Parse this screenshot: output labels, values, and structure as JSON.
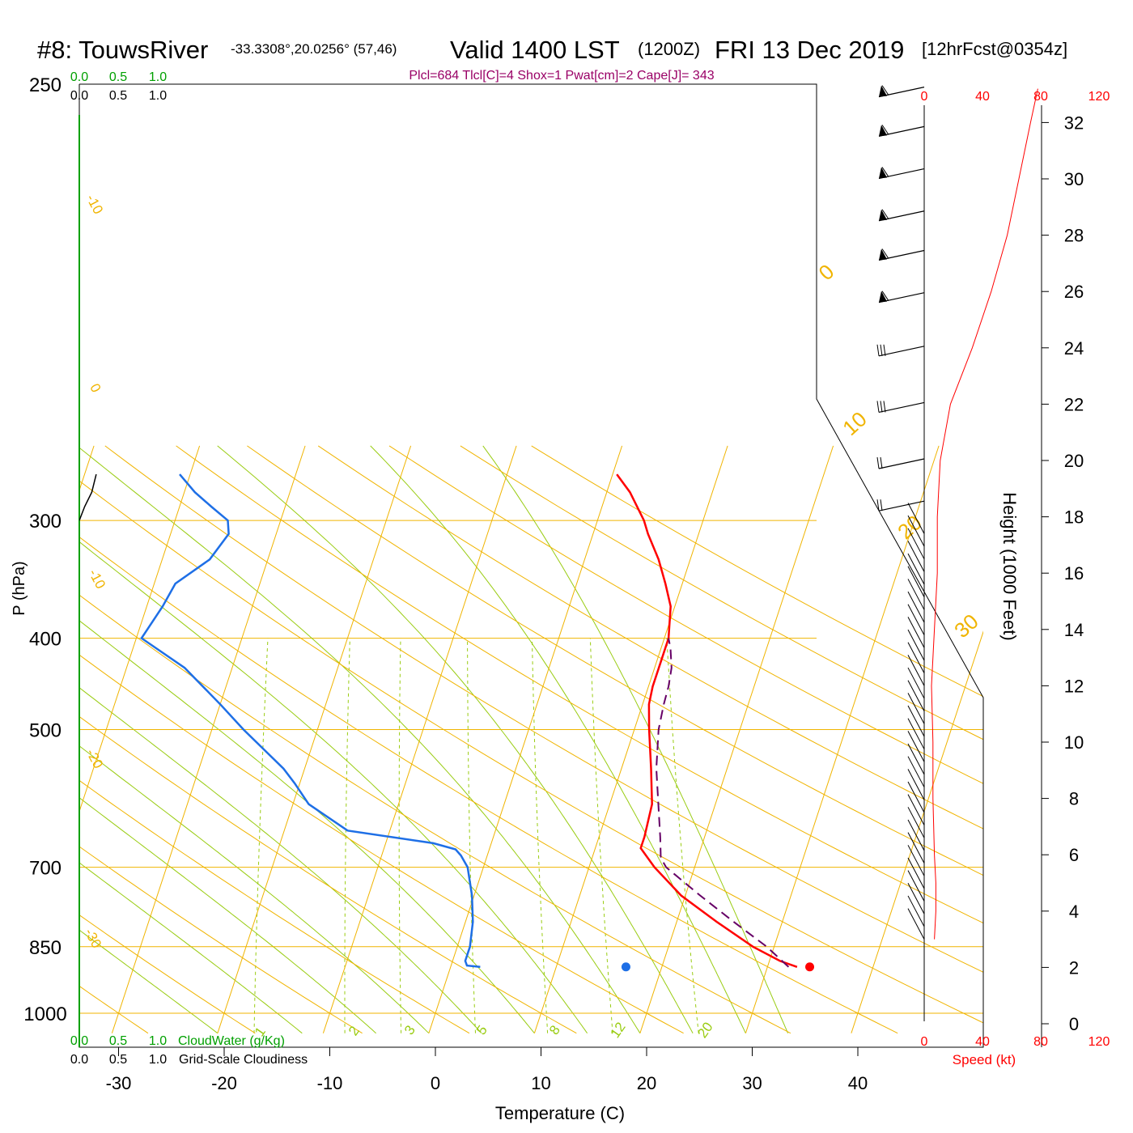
{
  "title": {
    "station": "#8: TouwsRiver",
    "coords": "-33.3308°,20.0256° (57,46)",
    "valid": "Valid 1400 LST",
    "zulu": "(1200Z)",
    "date": "FRI 13 Dec 2019",
    "forecast": "[12hrFcst@0354z]"
  },
  "indices_line": "Plcl=684 Tlcl[C]=4 Shox=1 Pwat[cm]=2 Cape[J]= 343",
  "colors": {
    "temperature": "#ff0000",
    "dewpoint": "#1e6fe6",
    "parcel": "#660066",
    "isotherm": "#f0b400",
    "dry_adiabat": "#f0b400",
    "moist_adiabat": "#99cc11",
    "mixing_ratio": "#99cc11",
    "cloud_water": "#00a000",
    "wind_speed": "#ff0000",
    "indices": "#990066"
  },
  "axes": {
    "xlabel": "Temperature (C)",
    "ylabel": "P (hPa)",
    "right_label": "Height (1000 Feet)",
    "speed_label": "Speed (kt)",
    "temp_ticks": [
      "-30",
      "-20",
      "-10",
      "0",
      "10",
      "20",
      "30",
      "40"
    ],
    "pressure_ticks": [
      "250",
      "300",
      "400",
      "500",
      "700",
      "850",
      "1000"
    ],
    "height_ticks": [
      "0",
      "2",
      "4",
      "6",
      "8",
      "10",
      "12",
      "14",
      "16",
      "18",
      "20",
      "22",
      "24",
      "26",
      "28",
      "30",
      "32"
    ],
    "speed_ticks": [
      "0",
      "40",
      "80",
      "120"
    ],
    "cloud_ticks": [
      "0.0",
      "0.5",
      "1.0"
    ],
    "cloud_water_label": "CloudWater (g/Kg)",
    "cloudiness_label": "Grid-Scale Cloudiness"
  },
  "background_labels": {
    "isotherm_labels": [
      "-10",
      "0",
      "-10",
      "-20",
      "-30"
    ],
    "dry_adiabat_labels": [
      "0",
      "10",
      "20",
      "30"
    ],
    "mixing_ratio_labels": [
      "1",
      "2",
      "3",
      "5",
      "8",
      "12",
      "20"
    ]
  },
  "chart_data": {
    "type": "skew-t",
    "temp_range_C": [
      -34,
      47
    ],
    "pressure_range_hPa": [
      1050,
      250
    ],
    "temperature_profile": [
      {
        "p": 893,
        "t": 32.8
      },
      {
        "p": 880,
        "t": 31.0
      },
      {
        "p": 850,
        "t": 28.0
      },
      {
        "p": 800,
        "t": 23.8
      },
      {
        "p": 750,
        "t": 19.6
      },
      {
        "p": 700,
        "t": 16.2
      },
      {
        "p": 668,
        "t": 14.3
      },
      {
        "p": 650,
        "t": 14.3
      },
      {
        "p": 600,
        "t": 14.0
      },
      {
        "p": 550,
        "t": 12.8
      },
      {
        "p": 500,
        "t": 11.4
      },
      {
        "p": 470,
        "t": 10.6
      },
      {
        "p": 450,
        "t": 10.4
      },
      {
        "p": 430,
        "t": 10.4
      },
      {
        "p": 400,
        "t": 10.4
      },
      {
        "p": 370,
        "t": 9.6
      },
      {
        "p": 350,
        "t": 8.4
      },
      {
        "p": 330,
        "t": 7.0
      },
      {
        "p": 310,
        "t": 5.2
      },
      {
        "p": 300,
        "t": 4.4
      },
      {
        "p": 280,
        "t": 2.2
      },
      {
        "p": 268,
        "t": 0.4
      }
    ],
    "dewpoint_profile": [
      {
        "p": 893,
        "t": 2.8
      },
      {
        "p": 890,
        "t": 1.5
      },
      {
        "p": 880,
        "t": 1.2
      },
      {
        "p": 850,
        "t": 1.2
      },
      {
        "p": 800,
        "t": 0.7
      },
      {
        "p": 750,
        "t": -0.2
      },
      {
        "p": 700,
        "t": -1.5
      },
      {
        "p": 680,
        "t": -2.5
      },
      {
        "p": 670,
        "t": -3.2
      },
      {
        "p": 660,
        "t": -5.5
      },
      {
        "p": 640,
        "t": -14.0
      },
      {
        "p": 600,
        "t": -18.5
      },
      {
        "p": 570,
        "t": -20.5
      },
      {
        "p": 550,
        "t": -22.0
      },
      {
        "p": 500,
        "t": -27.0
      },
      {
        "p": 470,
        "t": -30.0
      },
      {
        "p": 430,
        "t": -34.5
      },
      {
        "p": 400,
        "t": -39.5
      },
      {
        "p": 370,
        "t": -38.5
      },
      {
        "p": 350,
        "t": -38.0
      },
      {
        "p": 330,
        "t": -35.5
      },
      {
        "p": 310,
        "t": -34.5
      },
      {
        "p": 300,
        "t": -35.0
      },
      {
        "p": 290,
        "t": -37.0
      },
      {
        "p": 280,
        "t": -39.0
      },
      {
        "p": 268,
        "t": -41.0
      }
    ],
    "parcel_path": [
      {
        "p": 893,
        "t": 32.0
      },
      {
        "p": 850,
        "t": 29.3
      },
      {
        "p": 800,
        "t": 25.4
      },
      {
        "p": 750,
        "t": 21.4
      },
      {
        "p": 700,
        "t": 17.3
      },
      {
        "p": 684,
        "t": 16.5
      },
      {
        "p": 650,
        "t": 15.8
      },
      {
        "p": 600,
        "t": 14.6
      },
      {
        "p": 550,
        "t": 13.3
      },
      {
        "p": 500,
        "t": 12.3
      },
      {
        "p": 470,
        "t": 12.0
      },
      {
        "p": 450,
        "t": 11.9
      },
      {
        "p": 430,
        "t": 11.6
      },
      {
        "p": 410,
        "t": 10.9
      },
      {
        "p": 400,
        "t": 10.4
      }
    ],
    "surface_temperature": {
      "p": 893,
      "t": 34.0
    },
    "surface_dewpoint": {
      "p": 893,
      "t": 16.6
    },
    "isotherms_C": [
      -100,
      -90,
      -80,
      -70,
      -60,
      -50,
      -40,
      -30,
      -20,
      -10,
      0,
      10,
      20,
      30,
      40
    ],
    "dry_adiabats_theta_C": [
      -30,
      -20,
      -10,
      0,
      10,
      20,
      30,
      40,
      50,
      60,
      70,
      80,
      90,
      100,
      110,
      120
    ],
    "moist_adiabats_C": [
      -20,
      -12,
      -5,
      0,
      5,
      10,
      15,
      20,
      25,
      30,
      34
    ],
    "mixing_ratios_gkg": [
      1,
      2,
      3,
      5,
      8,
      12,
      20
    ],
    "height_kft": [
      0,
      2,
      4,
      6,
      8,
      10,
      12,
      14,
      16,
      18,
      20,
      22,
      24,
      26,
      28,
      30,
      32
    ],
    "wind_speed_profile_kt": [
      {
        "h": 3.0,
        "v": 7
      },
      {
        "h": 4.0,
        "v": 8
      },
      {
        "h": 5.0,
        "v": 8
      },
      {
        "h": 6.0,
        "v": 7
      },
      {
        "h": 8.0,
        "v": 6
      },
      {
        "h": 10.0,
        "v": 6
      },
      {
        "h": 12.0,
        "v": 5
      },
      {
        "h": 14.0,
        "v": 7
      },
      {
        "h": 16.0,
        "v": 9
      },
      {
        "h": 18.0,
        "v": 9
      },
      {
        "h": 20.0,
        "v": 11
      },
      {
        "h": 22.0,
        "v": 18
      },
      {
        "h": 24.0,
        "v": 33
      },
      {
        "h": 26.0,
        "v": 46
      },
      {
        "h": 28.0,
        "v": 57
      },
      {
        "h": 30.0,
        "v": 65
      },
      {
        "h": 32.0,
        "v": 73
      },
      {
        "h": 33.2,
        "v": 78
      }
    ],
    "cloudiness_profile": [
      {
        "p": 268,
        "v": 0.19
      },
      {
        "p": 280,
        "v": 0.14
      },
      {
        "p": 290,
        "v": 0.06
      },
      {
        "p": 300,
        "v": 0.0
      }
    ]
  }
}
